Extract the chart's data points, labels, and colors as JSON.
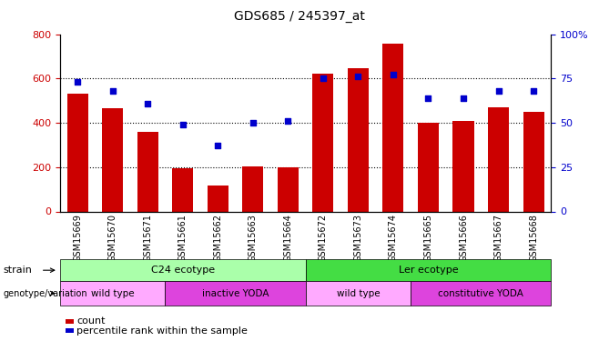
{
  "title": "GDS685 / 245397_at",
  "categories": [
    "GSM15669",
    "GSM15670",
    "GSM15671",
    "GSM15661",
    "GSM15662",
    "GSM15663",
    "GSM15664",
    "GSM15672",
    "GSM15673",
    "GSM15674",
    "GSM15665",
    "GSM15666",
    "GSM15667",
    "GSM15668"
  ],
  "bar_values": [
    530,
    465,
    360,
    195,
    115,
    205,
    200,
    620,
    645,
    755,
    400,
    410,
    468,
    450
  ],
  "percentile_values": [
    73,
    68,
    61,
    49,
    37,
    50,
    51,
    75,
    76,
    77,
    64,
    64,
    68,
    68
  ],
  "bar_color": "#cc0000",
  "dot_color": "#0000cc",
  "ylim_left": [
    0,
    800
  ],
  "ylim_right": [
    0,
    100
  ],
  "yticks_left": [
    0,
    200,
    400,
    600,
    800
  ],
  "yticks_right": [
    0,
    25,
    50,
    75,
    100
  ],
  "ytick_labels_right": [
    "0",
    "25",
    "50",
    "75",
    "100%"
  ],
  "grid_lines": [
    200,
    400,
    600
  ],
  "strain_row": [
    {
      "label": "C24 ecotype",
      "start": 0,
      "end": 7,
      "color": "#aaffaa"
    },
    {
      "label": "Ler ecotype",
      "start": 7,
      "end": 14,
      "color": "#44dd44"
    }
  ],
  "genotype_row": [
    {
      "label": "wild type",
      "start": 0,
      "end": 3,
      "color": "#ffaaff"
    },
    {
      "label": "inactive YODA",
      "start": 3,
      "end": 7,
      "color": "#dd44dd"
    },
    {
      "label": "wild type",
      "start": 7,
      "end": 10,
      "color": "#ffaaff"
    },
    {
      "label": "constitutive YODA",
      "start": 10,
      "end": 14,
      "color": "#dd44dd"
    }
  ],
  "strain_label": "strain",
  "genotype_label": "genotype/variation",
  "legend_bar_label": "count",
  "legend_dot_label": "percentile rank within the sample",
  "bar_width": 0.6,
  "background_color": "#ffffff",
  "tick_label_color_left": "#cc0000",
  "tick_label_color_right": "#0000cc"
}
